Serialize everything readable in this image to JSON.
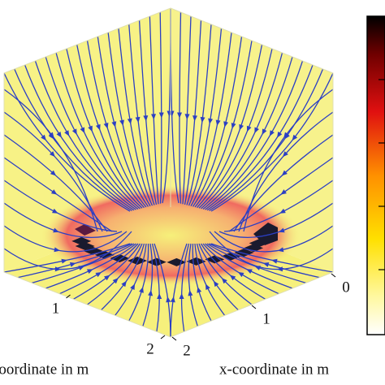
{
  "chart_data": {
    "type": "streamline3d",
    "x_label": "x-coordinate in m",
    "y_label": "coordinate in m",
    "xlim": [
      0,
      2
    ],
    "xticks": [
      0,
      1,
      2
    ],
    "ylim": [
      0,
      2
    ],
    "yticks": [
      1,
      2
    ],
    "line_color": "#2b3fc4"
  }
}
